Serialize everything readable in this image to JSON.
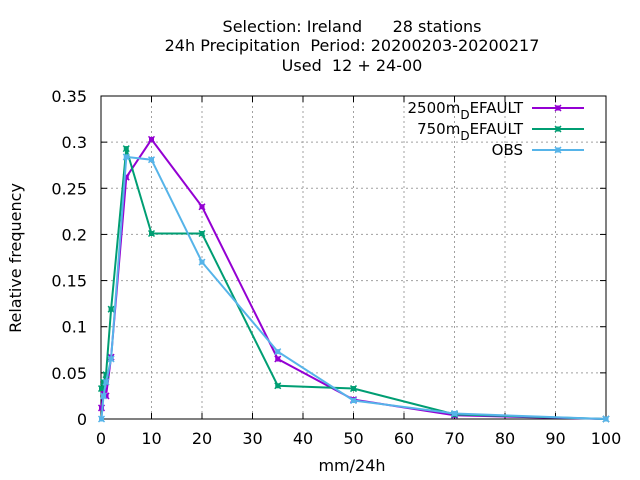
{
  "chart_data": {
    "type": "line",
    "title": [
      "Selection: Ireland      28 stations",
      "24h Precipitation  Period: 20200203-20200217",
      "Used  12 + 24-00"
    ],
    "xlabel": "mm/24h",
    "ylabel": "Relative frequency",
    "xlim": [
      0,
      100
    ],
    "ylim": [
      0,
      0.35
    ],
    "xticks": [
      "0",
      "10",
      "20",
      "30",
      "40",
      "50",
      "60",
      "70",
      "80",
      "90",
      "100"
    ],
    "yticks": [
      "0",
      "0.05",
      "0.1",
      "0.15",
      "0.2",
      "0.25",
      "0.3",
      "0.35"
    ],
    "grid": true,
    "legend_position": "top-right",
    "series": [
      {
        "name": "2500m_DEFAULT",
        "legend_main": "2500m",
        "legend_sub": "D",
        "legend_rest": "EFAULT",
        "color": "#9400d3",
        "x": [
          0.1,
          0.5,
          1,
          2,
          5,
          10,
          20,
          35,
          50,
          70,
          100
        ],
        "y": [
          0.012,
          0.03,
          0.025,
          0.067,
          0.262,
          0.303,
          0.23,
          0.065,
          0.021,
          0.004,
          0.0
        ]
      },
      {
        "name": "750m_DEFAULT",
        "legend_main": "750m",
        "legend_sub": "D",
        "legend_rest": "EFAULT",
        "color": "#009e73",
        "x": [
          0.1,
          0.5,
          1,
          2,
          5,
          10,
          20,
          35,
          50,
          70,
          100
        ],
        "y": [
          0.033,
          0.04,
          0.048,
          0.119,
          0.293,
          0.201,
          0.201,
          0.036,
          0.033,
          0.005,
          0.0
        ]
      },
      {
        "name": "OBS",
        "legend_main": "OBS",
        "legend_sub": "",
        "legend_rest": "",
        "color": "#56b4e9",
        "x": [
          0.1,
          0.5,
          1,
          2,
          5,
          10,
          20,
          35,
          50,
          70,
          100
        ],
        "y": [
          0.0,
          0.025,
          0.04,
          0.065,
          0.284,
          0.281,
          0.17,
          0.073,
          0.02,
          0.006,
          0.0
        ]
      }
    ]
  }
}
